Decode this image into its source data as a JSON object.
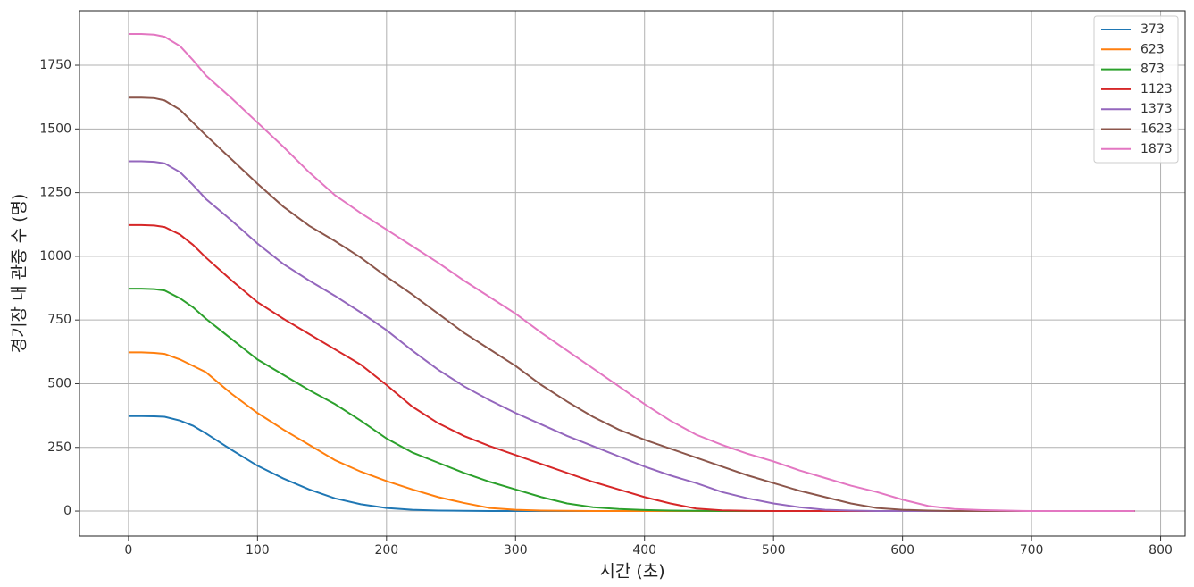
{
  "chart_data": {
    "type": "line",
    "x_label": "시간 (초)",
    "y_label": "경기장 내 관중 수 (명)",
    "x": [
      0,
      10,
      20,
      28,
      40,
      50,
      60,
      80,
      100,
      120,
      140,
      160,
      180,
      200,
      220,
      240,
      260,
      280,
      300,
      320,
      340,
      360,
      380,
      400,
      420,
      440,
      460,
      480,
      500,
      520,
      540,
      560,
      580,
      600,
      620,
      640,
      660,
      680,
      700,
      740,
      780
    ],
    "series": [
      {
        "name": "373",
        "color": "#1f77b4",
        "values": [
          373,
          373,
          372,
          370,
          355,
          335,
          305,
          240,
          178,
          128,
          85,
          50,
          27,
          12,
          5,
          2,
          1,
          0,
          0,
          0,
          0,
          0,
          0,
          0,
          0,
          0,
          0,
          0,
          0,
          0,
          0,
          0,
          0,
          0,
          0,
          0,
          0,
          0,
          0,
          0,
          0
        ]
      },
      {
        "name": "623",
        "color": "#ff7f0e",
        "values": [
          623,
          623,
          621,
          617,
          595,
          570,
          545,
          460,
          385,
          320,
          260,
          200,
          155,
          118,
          85,
          55,
          32,
          12,
          5,
          2,
          1,
          0,
          0,
          0,
          0,
          0,
          0,
          0,
          0,
          0,
          0,
          0,
          0,
          0,
          0,
          0,
          0,
          0,
          0,
          0,
          0
        ]
      },
      {
        "name": "873",
        "color": "#2ca02c",
        "values": [
          873,
          873,
          871,
          866,
          835,
          800,
          755,
          675,
          595,
          535,
          475,
          420,
          355,
          285,
          230,
          190,
          150,
          115,
          85,
          55,
          30,
          15,
          8,
          4,
          2,
          1,
          0,
          0,
          0,
          0,
          0,
          0,
          0,
          0,
          0,
          0,
          0,
          0,
          0,
          0,
          0
        ]
      },
      {
        "name": "1123",
        "color": "#d62728",
        "values": [
          1123,
          1123,
          1121,
          1115,
          1085,
          1045,
          995,
          905,
          820,
          755,
          695,
          635,
          575,
          495,
          410,
          345,
          295,
          255,
          220,
          185,
          150,
          115,
          85,
          55,
          30,
          10,
          3,
          1,
          0,
          0,
          0,
          0,
          0,
          0,
          0,
          0,
          0,
          0,
          0,
          0,
          0
        ]
      },
      {
        "name": "1373",
        "color": "#9467bd",
        "values": [
          1373,
          1373,
          1371,
          1365,
          1330,
          1280,
          1225,
          1140,
          1050,
          970,
          905,
          845,
          780,
          710,
          630,
          555,
          490,
          435,
          385,
          340,
          295,
          255,
          215,
          175,
          140,
          110,
          75,
          50,
          30,
          15,
          5,
          2,
          0,
          0,
          0,
          0,
          0,
          0,
          0,
          0,
          0
        ]
      },
      {
        "name": "1623",
        "color": "#8c564b",
        "values": [
          1623,
          1623,
          1621,
          1612,
          1575,
          1525,
          1475,
          1380,
          1285,
          1195,
          1120,
          1060,
          995,
          920,
          850,
          775,
          700,
          635,
          570,
          495,
          430,
          370,
          320,
          280,
          245,
          210,
          175,
          140,
          110,
          80,
          55,
          30,
          12,
          5,
          2,
          0,
          0,
          0,
          0,
          0,
          0
        ]
      },
      {
        "name": "1873",
        "color": "#e377c2",
        "values": [
          1873,
          1873,
          1870,
          1862,
          1825,
          1770,
          1710,
          1620,
          1525,
          1430,
          1330,
          1240,
          1170,
          1105,
          1040,
          975,
          905,
          840,
          775,
          700,
          630,
          560,
          490,
          420,
          355,
          300,
          260,
          225,
          195,
          160,
          130,
          100,
          75,
          45,
          20,
          8,
          4,
          2,
          0,
          0,
          0
        ]
      }
    ],
    "xlim": [
      -38,
      819
    ],
    "ylim": [
      -98,
      1964
    ],
    "xticks": [
      0,
      100,
      200,
      300,
      400,
      500,
      600,
      700,
      800
    ],
    "yticks": [
      0,
      250,
      500,
      750,
      1000,
      1250,
      1500,
      1750
    ],
    "grid": true,
    "legend": "upper right"
  }
}
